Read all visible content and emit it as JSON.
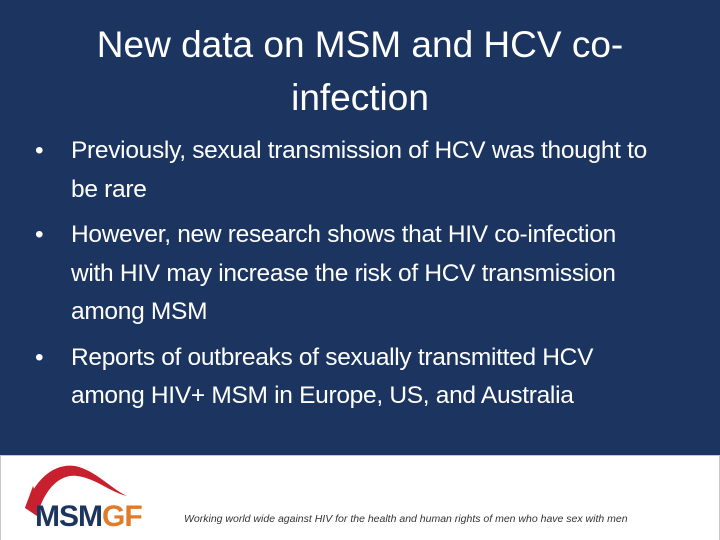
{
  "header": {
    "title": "New data on MSM and HCV co-infection"
  },
  "bullets": [
    "Previously, sexual transmission of HCV was thought to be rare",
    "However, new research shows that HIV co-infection with HIV may increase the risk of HCV transmission among MSM",
    "Reports of outbreaks of sexually transmitted HCV among HIV+ MSM in Europe, US, and Australia"
  ],
  "footer": {
    "logo": {
      "part1": "MSM",
      "part2": "GF"
    },
    "tagline": "Working world wide against HIV for the health and human rights of men who have sex with men"
  }
}
